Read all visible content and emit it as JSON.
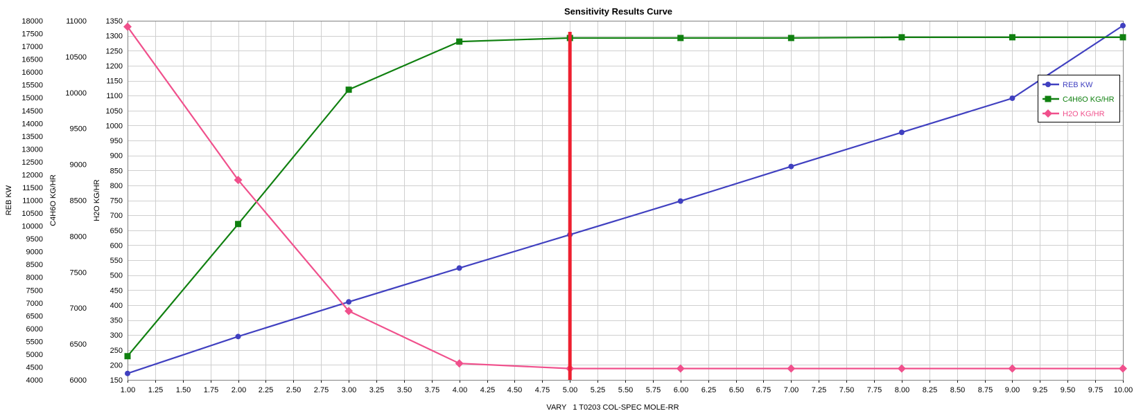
{
  "chart_data": {
    "type": "line",
    "title": "Sensitivity Results Curve",
    "xlabel": "VARY   1 T0203 COL-SPEC MOLE-RR",
    "xlim": [
      1.0,
      10.0
    ],
    "x_step": 0.25,
    "x": [
      1,
      2,
      3,
      4,
      5,
      6,
      7,
      8,
      9,
      10
    ],
    "axes": [
      {
        "id": "reb",
        "label": "REB KW",
        "min": 4000,
        "max": 18000,
        "step": 500,
        "decimals": 0
      },
      {
        "id": "c4h6o",
        "label": "C4H6O KG/HR",
        "min": 6000,
        "max": 11000,
        "step": 500,
        "decimals": 0
      },
      {
        "id": "h2o",
        "label": "H2O KG/HR",
        "min": 150,
        "max": 1350,
        "step": 50,
        "decimals": 0
      }
    ],
    "series": [
      {
        "name": "REB KW",
        "axis": "reb",
        "color": "#4040c0",
        "marker": "circle",
        "values": [
          4250,
          5690,
          7040,
          8360,
          9660,
          10970,
          12320,
          13650,
          14980,
          17810
        ]
      },
      {
        "name": "C4H6O KG/HR",
        "axis": "c4h6o",
        "color": "#108010",
        "marker": "square",
        "values": [
          6330,
          8170,
          10040,
          10710,
          10760,
          10760,
          10760,
          10770,
          10770,
          10770
        ]
      },
      {
        "name": "H2O KG/HR",
        "axis": "h2o",
        "color": "#f0508c",
        "marker": "diamond",
        "values": [
          1330,
          818,
          380,
          205,
          188,
          188,
          188,
          188,
          188,
          188
        ]
      }
    ],
    "marker_line": {
      "x": 5.0,
      "color": "#ee2030"
    },
    "grid": true,
    "legend_position": "top-right"
  }
}
